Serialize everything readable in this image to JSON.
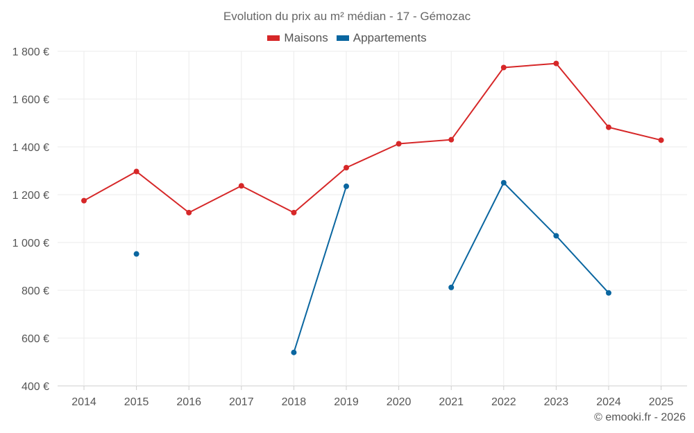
{
  "chart_data": {
    "type": "line",
    "title": "Evolution du prix au m² médian - 17 - Gémozac",
    "categories": [
      "2014",
      "2015",
      "2016",
      "2017",
      "2018",
      "2019",
      "2020",
      "2021",
      "2022",
      "2023",
      "2024",
      "2025"
    ],
    "series": [
      {
        "name": "Maisons",
        "color": "#d62728",
        "values": [
          1175,
          1297,
          1125,
          1237,
          1125,
          1313,
          1413,
          1430,
          1732,
          1749,
          1482,
          1428
        ]
      },
      {
        "name": "Appartements",
        "color": "#0a66a0",
        "values": [
          null,
          952,
          null,
          null,
          540,
          1235,
          null,
          812,
          1250,
          1028,
          789,
          null
        ]
      }
    ],
    "ylim": [
      400,
      1800
    ],
    "yticks": [
      400,
      600,
      800,
      1000,
      1200,
      1400,
      1600,
      1800
    ],
    "ytick_labels": [
      "400 €",
      "600 €",
      "800 €",
      "1 000 €",
      "1 200 €",
      "1 400 €",
      "1 600 €",
      "1 800 €"
    ],
    "xlabel": "",
    "ylabel": "",
    "grid": true,
    "legend_position": "top-center"
  },
  "credit": "© emooki.fr - 2026"
}
